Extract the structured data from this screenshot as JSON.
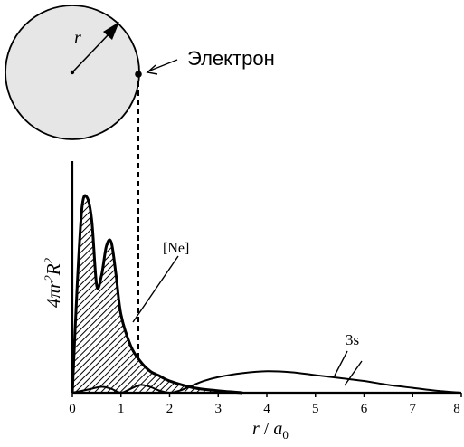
{
  "labels": {
    "electron": "Электрон",
    "radius": "r",
    "ne": "[Ne]",
    "orbital": "3s",
    "ylabel_4pi": "4π",
    "ylabel_r": "r",
    "ylabel_sq1": "2",
    "ylabel_R": "R",
    "ylabel_sq2": "2",
    "xlabel_r": "r",
    "xlabel_slash": " / ",
    "xlabel_a": "a",
    "xlabel_sub": "0"
  },
  "colors": {
    "ink": "#000000",
    "circle_fill": "#e6e6e6"
  },
  "chart_data": {
    "type": "area",
    "xlabel": "r / a0",
    "ylabel": "4πr²R²",
    "xlim": [
      0,
      8
    ],
    "ticks": [
      "0",
      "1",
      "2",
      "3",
      "4",
      "5",
      "6",
      "7",
      "8"
    ],
    "series": [
      {
        "name": "[Ne]",
        "x": [
          0,
          0.1,
          0.2,
          0.3,
          0.4,
          0.5,
          0.6,
          0.7,
          0.8,
          0.9,
          1.0,
          1.2,
          1.4,
          1.6,
          1.8,
          2.0,
          2.5,
          3.0,
          3.5
        ],
        "y": [
          0,
          0.55,
          0.95,
          1.0,
          0.88,
          0.55,
          0.6,
          0.75,
          0.77,
          0.6,
          0.4,
          0.24,
          0.16,
          0.11,
          0.085,
          0.06,
          0.025,
          0.01,
          0.0
        ]
      },
      {
        "name": "3s",
        "x": [
          0,
          0.3,
          0.6,
          0.8,
          1.0,
          1.2,
          1.4,
          1.6,
          1.8,
          2.0,
          2.2,
          2.4,
          2.7,
          3.0,
          3.5,
          4.0,
          4.5,
          5.0,
          5.5,
          6.0,
          6.5,
          7.0,
          7.5,
          8.0
        ],
        "y": [
          0,
          0.015,
          0.03,
          0.02,
          0.0,
          0.02,
          0.04,
          0.03,
          0.01,
          0.0,
          0.01,
          0.03,
          0.06,
          0.08,
          0.1,
          0.11,
          0.105,
          0.09,
          0.075,
          0.06,
          0.04,
          0.025,
          0.01,
          0.0
        ]
      }
    ],
    "annotations": [
      {
        "label": "[Ne]",
        "x": 1.35
      },
      {
        "label": "3s",
        "x": 5.6
      }
    ]
  }
}
